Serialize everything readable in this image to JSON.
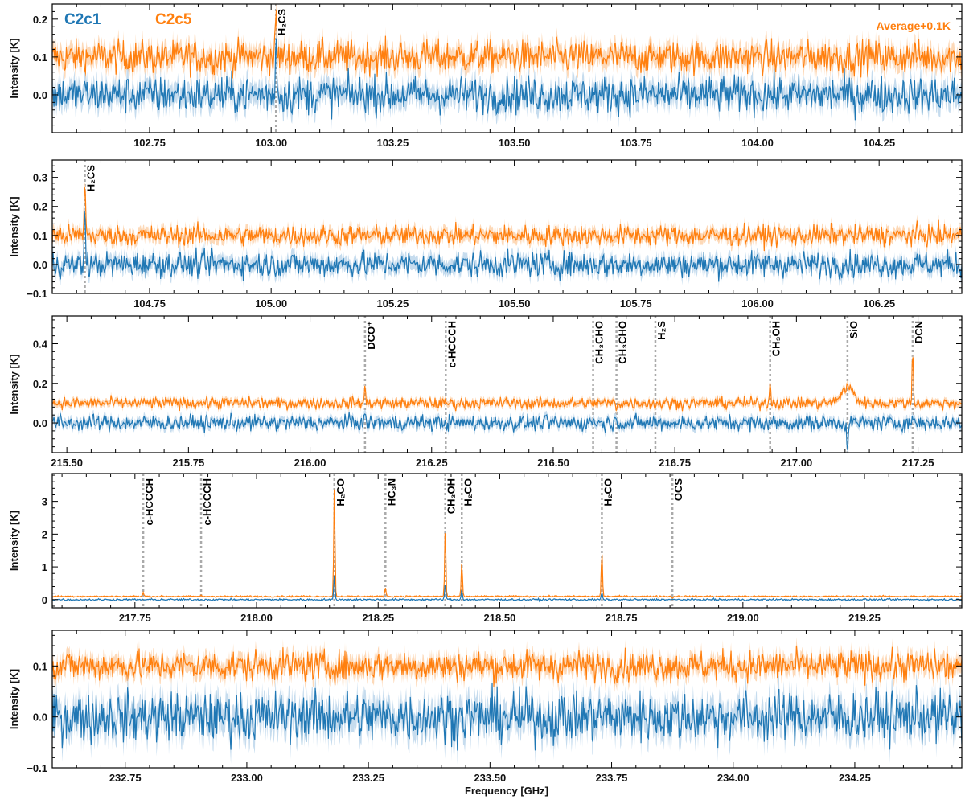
{
  "figure": {
    "xlabel": "Frequency [GHz]",
    "ylabel": "Intensity [K]",
    "legend": [
      {
        "name": "C2c1",
        "color": "#1f77b4"
      },
      {
        "name": "C2c5",
        "color": "#ff7f0e"
      }
    ],
    "annotation": {
      "text": "Average+0.1K",
      "color": "#ff7f0e"
    },
    "colors": {
      "c2c1": "#1f77b4",
      "c2c1_band": "#c6dcee",
      "c2c5": "#ff7f0e",
      "c2c5_band": "#fdd9b8",
      "marker": "#aaaaaa"
    }
  },
  "chart_data": [
    {
      "type": "line",
      "xlim": [
        102.55,
        104.42
      ],
      "ylim": [
        -0.1,
        0.24
      ],
      "xticks": [
        102.75,
        103.0,
        103.25,
        103.5,
        103.75,
        104.0,
        104.25
      ],
      "xtick_labels": [
        "102.75",
        "103.00",
        "103.25",
        "103.50",
        "103.75",
        "104.00",
        "104.25"
      ],
      "yticks": [
        0.0,
        0.1,
        0.2
      ],
      "ytick_labels": [
        "0.0",
        "0.1",
        "0.2"
      ],
      "noise": {
        "c2c1": 0.025,
        "c2c5": 0.022
      },
      "baseline": {
        "c2c1": 0.0,
        "c2c5": 0.1
      },
      "series": [
        {
          "name": "C2c1"
        },
        {
          "name": "C2c5"
        }
      ],
      "lines": [
        {
          "label": "H₂CS",
          "freq": 103.01,
          "peaks": {
            "c2c1": 0.17,
            "c2c5": 0.22
          }
        }
      ]
    },
    {
      "type": "line",
      "xlim": [
        104.55,
        106.42
      ],
      "ylim": [
        -0.1,
        0.36
      ],
      "xticks": [
        104.75,
        105.0,
        105.25,
        105.5,
        105.75,
        106.0,
        106.25
      ],
      "xtick_labels": [
        "104.75",
        "105.00",
        "105.25",
        "105.50",
        "105.75",
        "106.00",
        "106.25"
      ],
      "yticks": [
        -0.1,
        0.0,
        0.1,
        0.2,
        0.3
      ],
      "ytick_labels": [
        "−0.1",
        "0.0",
        "0.1",
        "0.2",
        "0.3"
      ],
      "noise": {
        "c2c1": 0.022,
        "c2c5": 0.018
      },
      "baseline": {
        "c2c1": 0.0,
        "c2c5": 0.1
      },
      "series": [
        {
          "name": "C2c1"
        },
        {
          "name": "C2c5"
        }
      ],
      "lines": [
        {
          "label": "H₂CS",
          "freq": 104.617,
          "peaks": {
            "c2c1": 0.2,
            "c2c5": 0.32
          }
        }
      ]
    },
    {
      "type": "line",
      "xlim": [
        215.47,
        217.34
      ],
      "ylim": [
        -0.15,
        0.54
      ],
      "xticks": [
        215.5,
        215.75,
        216.0,
        216.25,
        216.5,
        216.75,
        217.0,
        217.25
      ],
      "xtick_labels": [
        "215.50",
        "215.75",
        "216.00",
        "216.25",
        "216.50",
        "216.75",
        "217.00",
        "217.25"
      ],
      "yticks": [
        0.0,
        0.2,
        0.4
      ],
      "ytick_labels": [
        "0.0",
        "0.2",
        "0.4"
      ],
      "noise": {
        "c2c1": 0.02,
        "c2c5": 0.015
      },
      "baseline": {
        "c2c1": 0.0,
        "c2c5": 0.1
      },
      "series": [
        {
          "name": "C2c1"
        },
        {
          "name": "C2c5"
        }
      ],
      "lines": [
        {
          "label": "DCO⁺",
          "freq": 216.113,
          "peaks": {
            "c2c1": 0.04,
            "c2c5": 0.18
          }
        },
        {
          "label": "c-HCCCH",
          "freq": 216.279,
          "peaks": {
            "c2c1": 0.0,
            "c2c5": 0.1
          }
        },
        {
          "label": "CH₃CHO",
          "freq": 216.582,
          "peaks": {
            "c2c1": 0.03,
            "c2c5": 0.1
          }
        },
        {
          "label": "CH₃CHO",
          "freq": 216.63,
          "peaks": {
            "c2c1": 0.02,
            "c2c5": 0.08
          }
        },
        {
          "label": "H₂S",
          "freq": 216.71,
          "peaks": {
            "c2c1": 0.0,
            "c2c5": 0.08
          }
        },
        {
          "label": "CH₃OH",
          "freq": 216.946,
          "peaks": {
            "c2c1": 0.0,
            "c2c5": 0.22
          }
        },
        {
          "label": "SiO",
          "freq": 217.105,
          "peaks": {
            "c2c1": -0.17,
            "c2c5": 0.18
          }
        },
        {
          "label": "DCN",
          "freq": 217.239,
          "peaks": {
            "c2c1": 0.03,
            "c2c5": 0.38
          }
        }
      ]
    },
    {
      "type": "line",
      "xlim": [
        217.58,
        219.45
      ],
      "ylim": [
        -0.25,
        3.85
      ],
      "xticks": [
        217.75,
        218.0,
        218.25,
        218.5,
        218.75,
        219.0,
        219.25
      ],
      "xtick_labels": [
        "217.75",
        "218.00",
        "218.25",
        "218.50",
        "218.75",
        "219.00",
        "219.25"
      ],
      "yticks": [
        0,
        1,
        2,
        3
      ],
      "ytick_labels": [
        "0",
        "1",
        "2",
        "3"
      ],
      "noise": {
        "c2c1": 0.015,
        "c2c5": 0.012
      },
      "baseline": {
        "c2c1": 0.0,
        "c2c5": 0.1
      },
      "series": [
        {
          "name": "C2c1"
        },
        {
          "name": "C2c5"
        }
      ],
      "lines": [
        {
          "label": "c-HCCCH",
          "freq": 217.767,
          "peaks": {
            "c2c1": 0.0,
            "c2c5": 0.22
          }
        },
        {
          "label": "c-HCCCH",
          "freq": 217.886,
          "peaks": {
            "c2c1": 0.0,
            "c2c5": 0.12
          }
        },
        {
          "label": "H₂CO",
          "freq": 218.16,
          "peaks": {
            "c2c1": 0.75,
            "c2c5": 3.45
          }
        },
        {
          "label": "HC₃N",
          "freq": 218.265,
          "peaks": {
            "c2c1": 0.0,
            "c2c5": 0.38
          }
        },
        {
          "label": "CH₃OH",
          "freq": 218.388,
          "peaks": {
            "c2c1": 0.5,
            "c2c5": 2.18
          }
        },
        {
          "label": "H₂CO",
          "freq": 218.422,
          "peaks": {
            "c2c1": 0.3,
            "c2c5": 1.15
          }
        },
        {
          "label": "H₂CO",
          "freq": 218.71,
          "peaks": {
            "c2c1": 0.22,
            "c2c5": 1.48
          }
        },
        {
          "label": "OCS",
          "freq": 218.855,
          "peaks": {
            "c2c1": 0.0,
            "c2c5": 0.05
          }
        }
      ]
    },
    {
      "type": "line",
      "xlim": [
        232.6,
        234.47
      ],
      "ylim": [
        -0.1,
        0.17
      ],
      "xticks": [
        232.75,
        233.0,
        233.25,
        233.5,
        233.75,
        234.0,
        234.25
      ],
      "xtick_labels": [
        "232.75",
        "233.00",
        "233.25",
        "233.50",
        "233.75",
        "234.00",
        "234.25"
      ],
      "yticks": [
        -0.1,
        0.0,
        0.1
      ],
      "ytick_labels": [
        "−0.1",
        "0.0",
        "0.1"
      ],
      "noise": {
        "c2c1": 0.025,
        "c2c5": 0.015
      },
      "baseline": {
        "c2c1": 0.0,
        "c2c5": 0.1
      },
      "series": [
        {
          "name": "C2c1"
        },
        {
          "name": "C2c5"
        }
      ],
      "lines": []
    }
  ]
}
